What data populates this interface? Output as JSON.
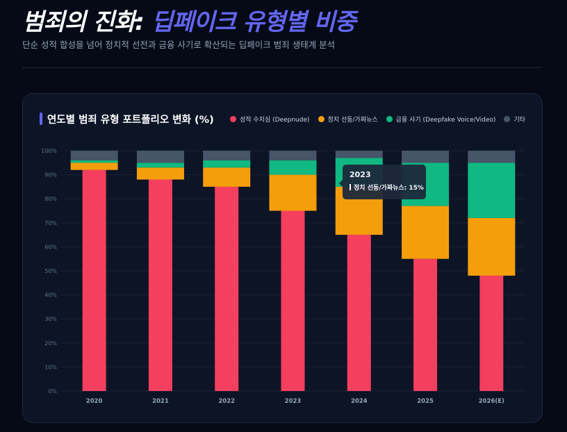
{
  "header": {
    "title_part1": "범죄의 진화:",
    "title_part2": "딥페이크 유형별 비중",
    "subtitle": "단순 성적 합성을 넘어 정치적 선전과 금융 사기로 확산되는 딥페이크 범죄 생태계 분석"
  },
  "chart_data": {
    "type": "bar",
    "stacked": true,
    "title": "연도별 범죄 유형 포트폴리오 변화 (%)",
    "categories": [
      "2020",
      "2021",
      "2022",
      "2023",
      "2024",
      "2025",
      "2026(E)"
    ],
    "series": [
      {
        "name": "성적 수치심 (Deepnude)",
        "color": "#f43f5e",
        "values": [
          92,
          88,
          85,
          75,
          65,
          55,
          48
        ]
      },
      {
        "name": "정치 선동/가짜뉴스",
        "color": "#f59e0b",
        "values": [
          3,
          5,
          8,
          15,
          20,
          22,
          24
        ]
      },
      {
        "name": "금융 사기 (Deepfake Voice/Video)",
        "color": "#10b981",
        "values": [
          1,
          2,
          3,
          6,
          12,
          18,
          23
        ]
      },
      {
        "name": "기타",
        "color": "#475569",
        "values": [
          4,
          5,
          4,
          4,
          3,
          5,
          5
        ]
      }
    ],
    "ylim": [
      0,
      100
    ],
    "yticks": [
      "0%",
      "10%",
      "20%",
      "30%",
      "40%",
      "50%",
      "60%",
      "70%",
      "80%",
      "90%",
      "100%"
    ],
    "grid": true,
    "legend": "top-right",
    "tooltip": {
      "title": "2023",
      "label": "정치 선동/가짜뉴스: 15%"
    }
  }
}
